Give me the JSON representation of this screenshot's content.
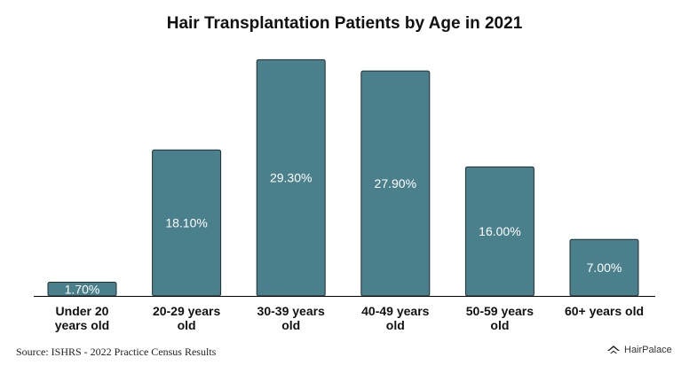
{
  "chart_data": {
    "type": "bar",
    "title": "Hair Transplantation Patients by Age in 2021",
    "categories": [
      [
        "Under 20",
        "years old"
      ],
      [
        "20-29 years",
        "old"
      ],
      [
        "30-39 years",
        "old"
      ],
      [
        "40-49 years",
        "old"
      ],
      [
        "50-59 years",
        "old"
      ],
      [
        "60+ years old"
      ]
    ],
    "values": [
      1.7,
      18.1,
      29.3,
      27.9,
      16.0,
      7.0
    ],
    "data_labels": [
      "1.70%",
      "18.10%",
      "29.30%",
      "27.90%",
      "16.00%",
      "7.00%"
    ],
    "ylim": [
      0,
      30
    ],
    "bar_color": "#4a7f8c",
    "grid": false,
    "legend": "none"
  },
  "footer": {
    "source": "Source: ISHRS - 2022 Practice Census Results",
    "brand": "HairPalace",
    "brand_icon": "roof-icon"
  }
}
